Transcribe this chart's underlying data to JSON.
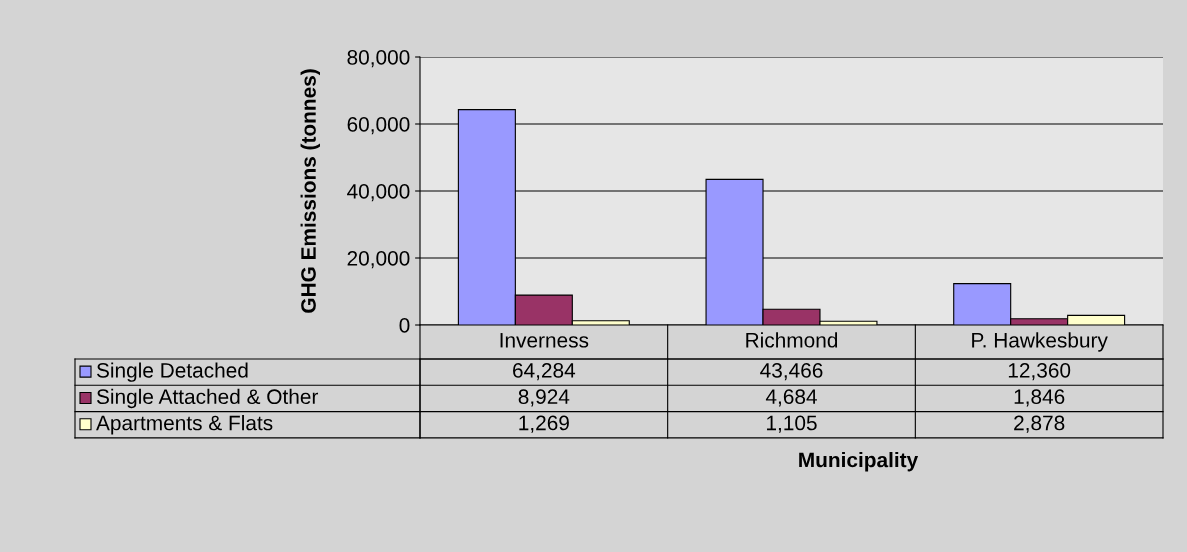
{
  "chart_data": {
    "type": "bar",
    "xlabel": "Municipality",
    "ylabel": "GHG Emissions (tonnes)",
    "categories": [
      "Inverness",
      "Richmond",
      "P. Hawkesbury"
    ],
    "series": [
      {
        "name": "Single Detached",
        "color": "#9999ff",
        "values": [
          64284,
          43466,
          12360
        ],
        "value_labels": [
          "64,284",
          "43,466",
          "12,360"
        ]
      },
      {
        "name": "Single Attached & Other",
        "color": "#993366",
        "values": [
          8924,
          4684,
          1846
        ],
        "value_labels": [
          "8,924",
          "4,684",
          "1,846"
        ]
      },
      {
        "name": "Apartments & Flats",
        "color": "#ffffcc",
        "values": [
          1269,
          1105,
          2878
        ],
        "value_labels": [
          "1,269",
          "1,105",
          "2,878"
        ]
      }
    ],
    "ylim": [
      0,
      80000
    ],
    "yticks": [
      {
        "value": 0,
        "label": "0"
      },
      {
        "value": 20000,
        "label": "20,000"
      },
      {
        "value": 40000,
        "label": "40,000"
      },
      {
        "value": 60000,
        "label": "60,000"
      },
      {
        "value": 80000,
        "label": "80,000"
      }
    ],
    "grid": "y",
    "legend": "bottom"
  }
}
